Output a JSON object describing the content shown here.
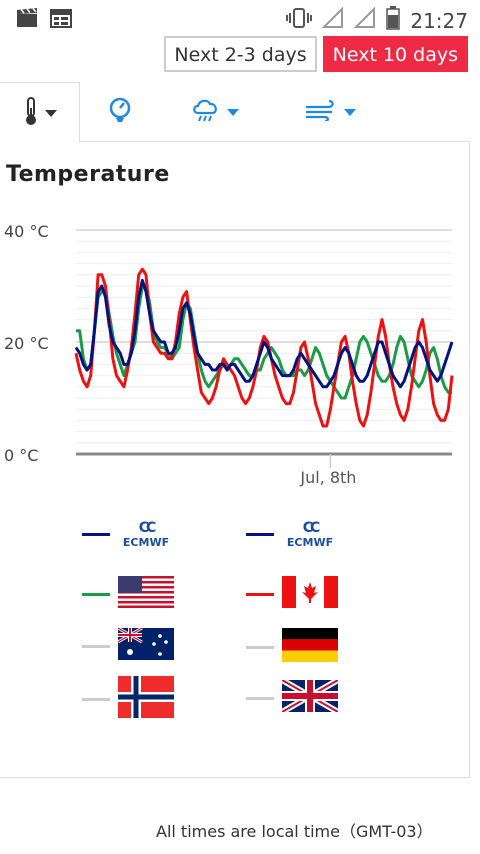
{
  "status_bar": {
    "time": "21:27",
    "icons": [
      "clapperboard-icon",
      "calendar-icon",
      "vibrate-icon",
      "signal-icon",
      "wifi-icon",
      "battery-icon"
    ]
  },
  "range_buttons": [
    {
      "label": "Next 2-3 days",
      "active": false
    },
    {
      "label": "Next 10 days",
      "active": true
    }
  ],
  "tabs": [
    {
      "icon": "thermometer-icon",
      "has_caret": true,
      "active": true
    },
    {
      "icon": "gauge-icon",
      "has_caret": false,
      "active": false
    },
    {
      "icon": "rain-cloud-icon",
      "has_caret": true,
      "active": false
    },
    {
      "icon": "wind-icon",
      "has_caret": true,
      "active": false
    }
  ],
  "section": {
    "title": "Temperature"
  },
  "colors": {
    "accent": "#ee2a44",
    "ecmwf": "#00137f",
    "usa": "#1a9b46",
    "canada": "#ee1111",
    "inactive": "#cccccc",
    "tab_icon": "#1e88e5"
  },
  "chart_data": {
    "type": "line",
    "title": "",
    "ylabel": "",
    "yticks": [
      "40 °C",
      "20 °C",
      "0 °C"
    ],
    "ylim": [
      0,
      40
    ],
    "xticks": [
      {
        "label": "Jul, 8th",
        "x": 69
      }
    ],
    "x_count": 103,
    "series": [
      {
        "color": "#1a9b46",
        "values": [
          22,
          22,
          17,
          15,
          16,
          22,
          28,
          29,
          29,
          25,
          21,
          18,
          16,
          14,
          16,
          18,
          20,
          26,
          30,
          30,
          27,
          22,
          20,
          19,
          19,
          18,
          17,
          18,
          19,
          24,
          27,
          26,
          22,
          18,
          15,
          13,
          12,
          13,
          14,
          15,
          16,
          15,
          16,
          17,
          17,
          16,
          15,
          14,
          14,
          15,
          15,
          17,
          18,
          19,
          18,
          17,
          15,
          14,
          14,
          14,
          15,
          15,
          14,
          15,
          17,
          19,
          18,
          16,
          14,
          13,
          12,
          11,
          10,
          10,
          12,
          14,
          17,
          20,
          21,
          20,
          18,
          16,
          14,
          13,
          13,
          14,
          16,
          19,
          21,
          20,
          17,
          14,
          13,
          12,
          13,
          15,
          18,
          19,
          17,
          14,
          12,
          11,
          11
        ]
      },
      {
        "color": "#ee1111",
        "values": [
          18,
          15,
          13,
          12,
          14,
          22,
          32,
          32,
          30,
          24,
          17,
          14,
          13,
          12,
          15,
          19,
          25,
          32,
          33,
          32,
          25,
          20,
          19,
          18,
          18,
          17,
          17,
          20,
          25,
          28,
          29,
          24,
          19,
          15,
          11,
          10,
          9,
          10,
          12,
          15,
          17,
          16,
          15,
          14,
          12,
          10,
          9,
          10,
          12,
          15,
          19,
          21,
          20,
          17,
          14,
          12,
          10,
          9,
          9,
          11,
          15,
          19,
          20,
          17,
          13,
          9,
          7,
          5,
          5,
          8,
          12,
          16,
          20,
          21,
          18,
          13,
          9,
          6,
          5,
          7,
          11,
          16,
          21,
          24,
          21,
          16,
          12,
          9,
          7,
          6,
          8,
          12,
          17,
          22,
          24,
          20,
          14,
          9,
          7,
          6,
          6,
          8,
          14
        ]
      },
      {
        "color": "#00137f",
        "values": [
          19,
          18,
          16,
          15,
          16,
          22,
          29,
          30,
          28,
          23,
          20,
          19,
          18,
          16,
          16,
          18,
          22,
          28,
          31,
          29,
          25,
          22,
          21,
          20,
          20,
          18,
          18,
          19,
          22,
          26,
          27,
          25,
          21,
          18,
          17,
          16,
          16,
          15,
          15,
          16,
          16,
          15,
          16,
          16,
          15,
          14,
          13,
          13,
          14,
          16,
          18,
          20,
          19,
          17,
          16,
          15,
          14,
          14,
          14,
          15,
          17,
          18,
          17,
          16,
          15,
          14,
          13,
          12,
          12,
          13,
          14,
          16,
          18,
          19,
          18,
          16,
          14,
          13,
          13,
          14,
          16,
          18,
          20,
          20,
          18,
          16,
          14,
          13,
          12,
          13,
          15,
          17,
          19,
          20,
          19,
          17,
          15,
          14,
          13,
          14,
          16,
          18,
          20
        ]
      }
    ]
  },
  "legend": [
    {
      "type": "ecmwf",
      "text": "ECMWF",
      "color": "#00137f"
    },
    {
      "type": "ecmwf",
      "text": "ECMWF",
      "color": "#00137f"
    },
    {
      "type": "flag",
      "flag": "usa-flag-icon",
      "color": "#1a9b46"
    },
    {
      "type": "flag",
      "flag": "canada-flag-icon",
      "color": "#ee1111"
    },
    {
      "type": "flag",
      "flag": "australia-flag-icon",
      "color": "#cccccc"
    },
    {
      "type": "flag",
      "flag": "germany-flag-icon",
      "color": "#cccccc"
    },
    {
      "type": "flag",
      "flag": "norway-flag-icon",
      "color": "#cccccc"
    },
    {
      "type": "flag",
      "flag": "uk-flag-icon",
      "color": "#cccccc"
    }
  ],
  "footer": {
    "text": "All times are local time（GMT-03）"
  }
}
